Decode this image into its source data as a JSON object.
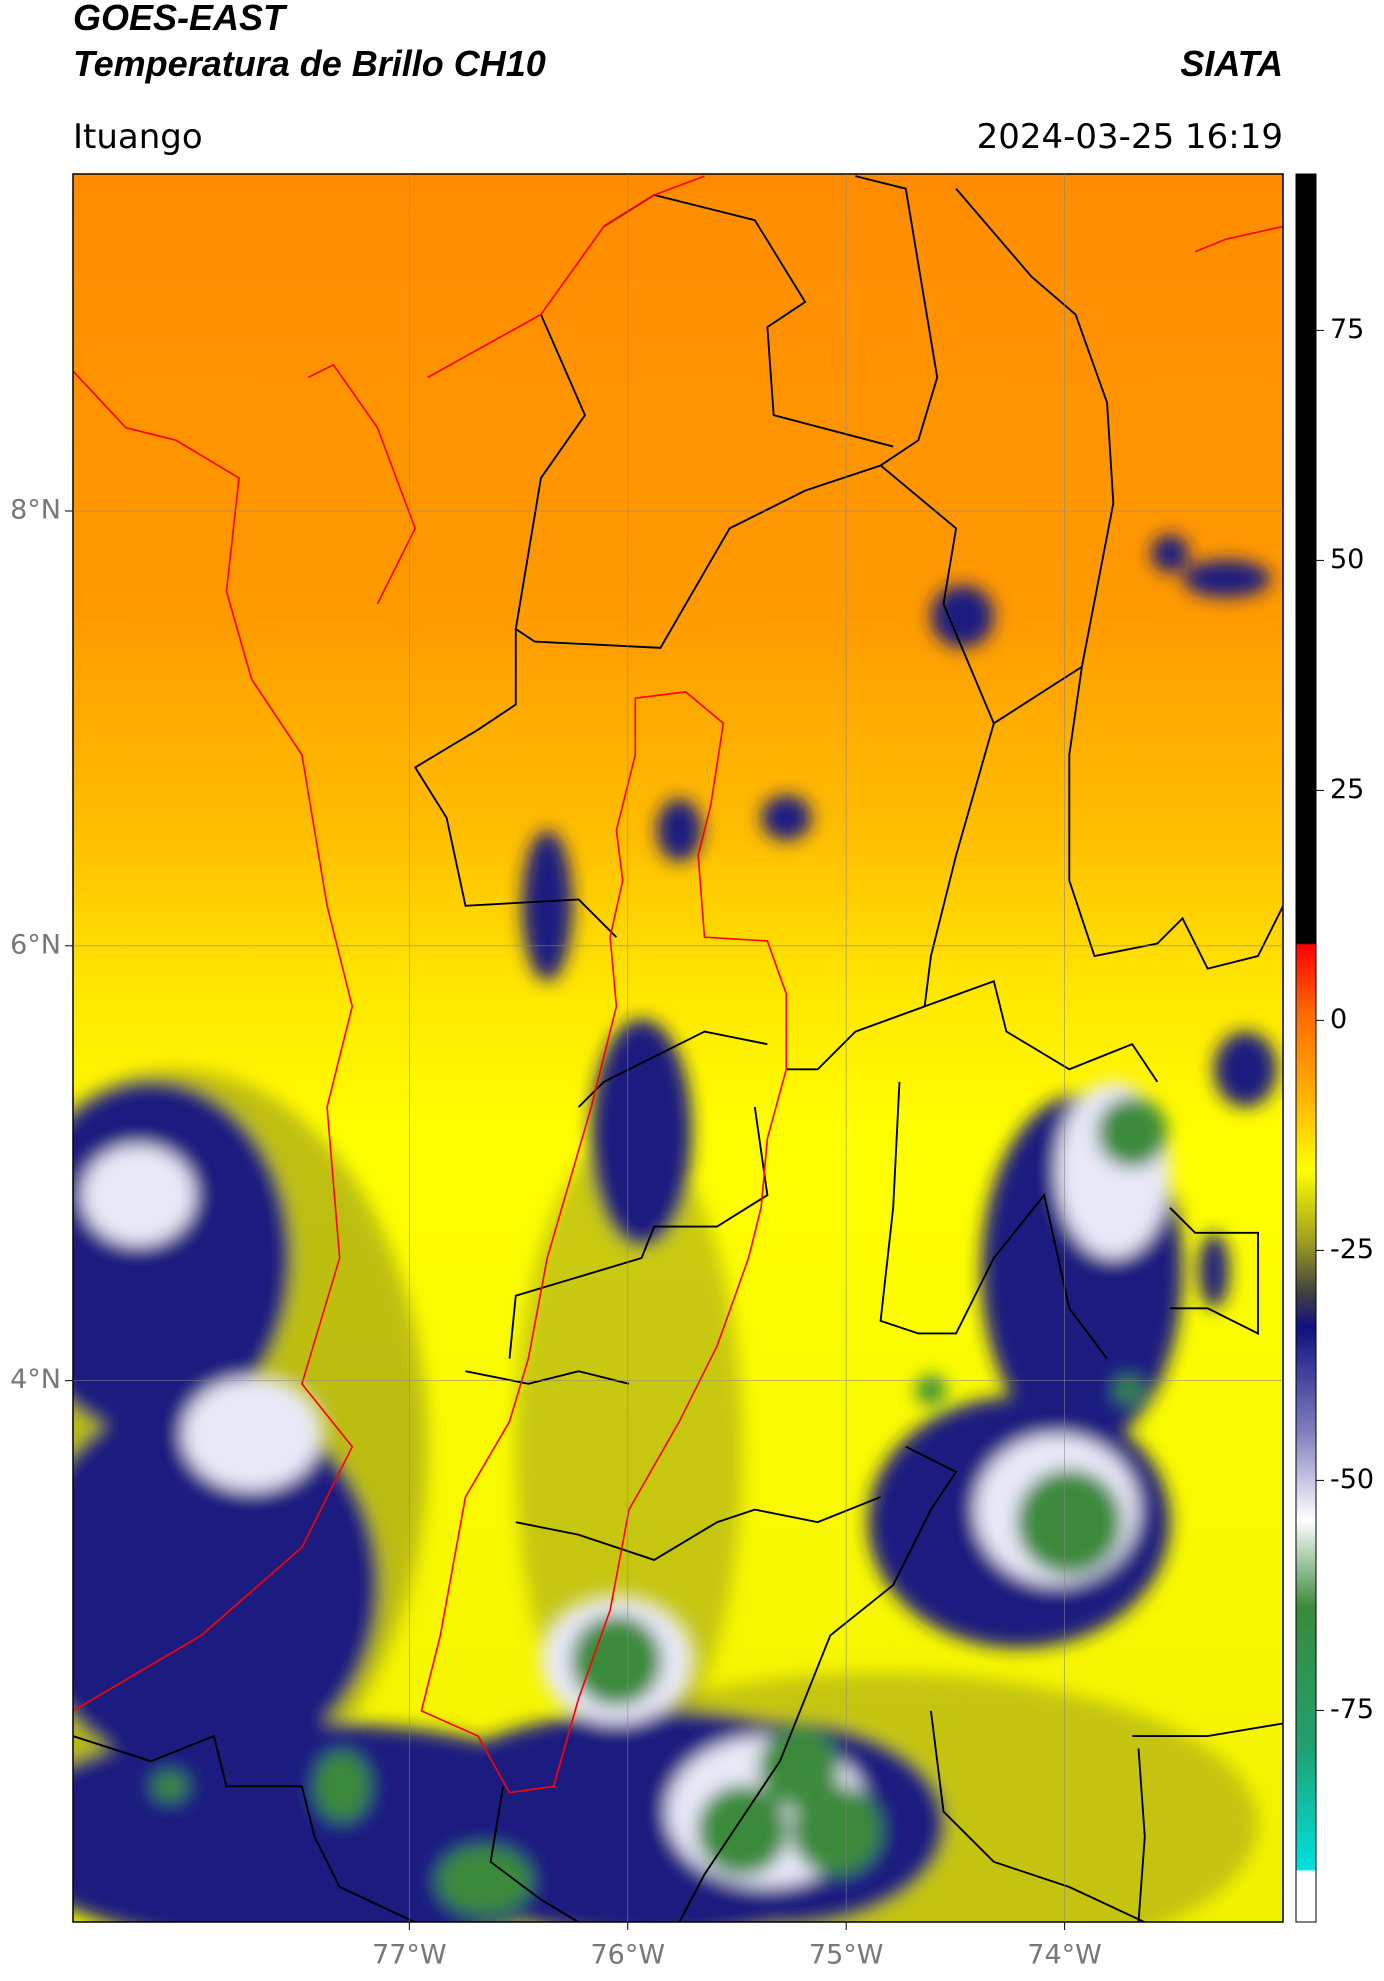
{
  "chart_data": {
    "type": "map",
    "title": "GOES-EAST",
    "subtitle": "Temperatura de Brillo CH10",
    "source": "SIATA",
    "location": "Ituango",
    "timestamp": "2024-03-25 16:19",
    "xlim": [
      -78.54,
      -73.0
    ],
    "ylim": [
      1.51,
      9.55
    ],
    "xticks": [
      {
        "value": -77,
        "label": "77°W"
      },
      {
        "value": -76,
        "label": "76°W"
      },
      {
        "value": -75,
        "label": "75°W"
      },
      {
        "value": -74,
        "label": "74°W"
      }
    ],
    "yticks": [
      {
        "value": 4,
        "label": "4°N"
      },
      {
        "value": 6,
        "label": "6°N"
      },
      {
        "value": 8,
        "label": "8°N"
      }
    ],
    "grid": true,
    "colorbar": {
      "lim": [
        -98,
        92
      ],
      "ticks": [
        -75,
        -50,
        -25,
        0,
        25,
        50,
        75
      ]
    }
  }
}
